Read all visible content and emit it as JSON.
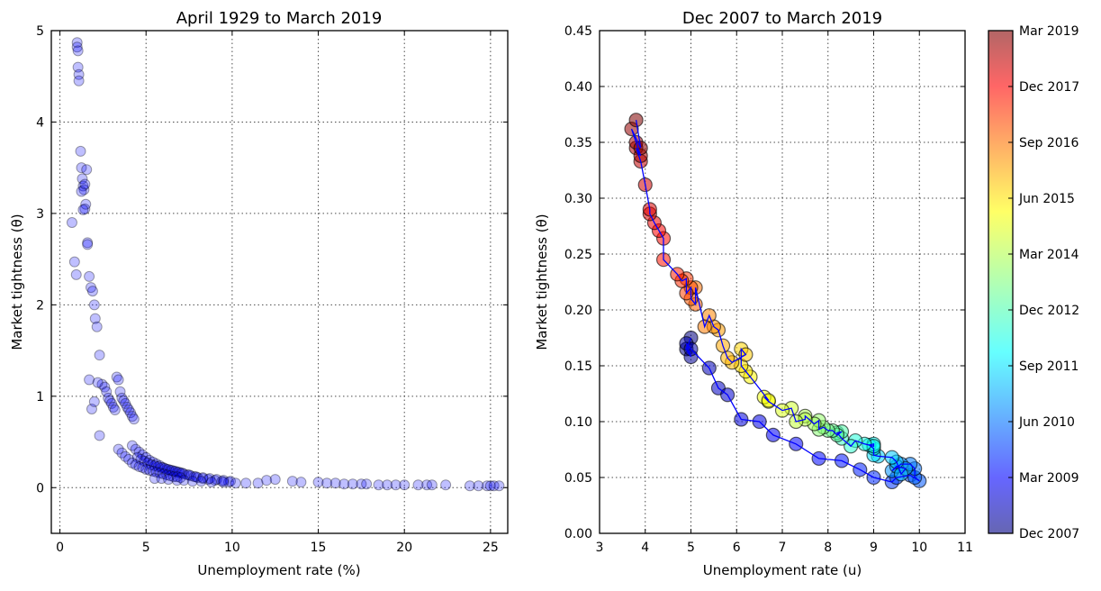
{
  "chart_data": [
    {
      "type": "scatter",
      "title": "April 1929 to March 2019",
      "xlabel": "Unemployment rate (%)",
      "ylabel": "Market tightness (θ)",
      "xlim": [
        -0.5,
        26
      ],
      "ylim": [
        -0.5,
        5
      ],
      "xticks": [
        0,
        5,
        10,
        15,
        20,
        25
      ],
      "yticks": [
        0,
        1,
        2,
        3,
        4,
        5
      ],
      "grid": true,
      "marker_color": "#0000ff",
      "marker_alpha": 0.25,
      "series": [
        {
          "x": [
            1.0,
            1.0,
            1.05,
            1.05,
            1.1,
            1.1,
            1.2,
            1.25,
            1.3,
            1.35,
            1.4,
            1.45,
            1.5,
            1.55,
            1.6,
            1.6,
            0.7,
            0.85,
            0.95,
            1.25,
            1.35,
            1.45,
            1.7,
            1.8,
            1.9,
            2.0,
            2.05,
            2.15,
            1.7,
            1.85,
            2.0,
            2.3,
            2.45,
            2.6,
            2.7,
            2.8,
            2.9,
            3.0,
            3.1,
            3.2,
            3.3,
            3.4,
            2.2,
            2.3,
            3.5,
            3.6,
            3.7,
            3.8,
            3.9,
            4.0,
            4.1,
            4.2,
            4.3,
            3.4,
            3.6,
            3.8,
            4.0,
            4.2,
            4.4,
            4.6,
            4.8,
            5.0,
            5.2,
            5.4,
            5.6,
            5.8,
            6.0,
            6.2,
            6.4,
            6.6,
            6.8,
            7.0,
            7.2,
            7.4,
            7.6,
            7.8,
            8.0,
            8.3,
            8.6,
            9.0,
            9.4,
            9.8,
            4.5,
            4.7,
            4.9,
            5.1,
            5.3,
            5.5,
            5.7,
            5.9,
            6.1,
            6.3,
            6.5,
            6.7,
            6.9,
            7.1,
            7.5,
            7.9,
            8.3,
            8.7,
            9.1,
            9.5,
            9.9,
            4.2,
            4.4,
            4.6,
            4.8,
            5.0,
            5.2,
            5.4,
            5.6,
            5.8,
            6.0,
            6.2,
            6.4,
            6.6,
            6.8,
            7.0,
            5.5,
            5.9,
            6.3,
            6.8,
            7.2,
            7.7,
            8.2,
            8.8,
            9.5,
            10.2,
            10.8,
            11.5,
            12.0,
            12.5,
            13.5,
            14.0,
            15.0,
            15.5,
            16.0,
            16.5,
            17.0,
            17.5,
            17.8,
            18.5,
            19.0,
            19.5,
            20.0,
            20.8,
            21.3,
            21.6,
            22.4,
            23.8,
            24.3,
            24.8,
            25.0,
            25.2,
            25.5
          ],
          "y": [
            4.87,
            4.82,
            4.78,
            4.6,
            4.52,
            4.45,
            3.68,
            3.5,
            3.38,
            3.3,
            3.26,
            3.05,
            3.1,
            3.48,
            2.68,
            2.66,
            2.9,
            2.47,
            2.33,
            3.24,
            3.04,
            3.32,
            2.31,
            2.19,
            2.15,
            2.0,
            1.85,
            1.76,
            1.18,
            0.86,
            0.94,
            1.45,
            1.13,
            1.1,
            1.05,
            0.98,
            0.95,
            0.92,
            0.88,
            0.85,
            1.21,
            1.18,
            1.15,
            0.57,
            1.05,
            0.98,
            0.95,
            0.92,
            0.88,
            0.85,
            0.82,
            0.78,
            0.75,
            0.42,
            0.38,
            0.34,
            0.31,
            0.46,
            0.42,
            0.39,
            0.36,
            0.33,
            0.3,
            0.28,
            0.26,
            0.24,
            0.22,
            0.2,
            0.19,
            0.18,
            0.17,
            0.16,
            0.15,
            0.14,
            0.13,
            0.12,
            0.11,
            0.1,
            0.09,
            0.08,
            0.07,
            0.06,
            0.33,
            0.31,
            0.29,
            0.27,
            0.25,
            0.24,
            0.23,
            0.22,
            0.21,
            0.2,
            0.19,
            0.18,
            0.17,
            0.16,
            0.14,
            0.12,
            0.11,
            0.1,
            0.09,
            0.08,
            0.07,
            0.27,
            0.25,
            0.23,
            0.22,
            0.2,
            0.19,
            0.18,
            0.17,
            0.16,
            0.15,
            0.14,
            0.13,
            0.12,
            0.12,
            0.11,
            0.1,
            0.1,
            0.09,
            0.08,
            0.08,
            0.07,
            0.07,
            0.06,
            0.06,
            0.05,
            0.05,
            0.05,
            0.08,
            0.09,
            0.07,
            0.06,
            0.06,
            0.05,
            0.05,
            0.04,
            0.04,
            0.04,
            0.04,
            0.03,
            0.03,
            0.03,
            0.03,
            0.03,
            0.03,
            0.03,
            0.03,
            0.02,
            0.02,
            0.02,
            0.02,
            0.02,
            0.02
          ]
        }
      ]
    },
    {
      "type": "line",
      "title": "Dec 2007 to March 2019",
      "xlabel": "Unemployment rate (u)",
      "ylabel": "Market tightness (θ)",
      "xlim": [
        3,
        11
      ],
      "ylim": [
        0.0,
        0.45
      ],
      "xticks": [
        3,
        4,
        5,
        6,
        7,
        8,
        9,
        10,
        11
      ],
      "yticks": [
        0.0,
        0.05,
        0.1,
        0.15,
        0.2,
        0.25,
        0.3,
        0.35,
        0.4,
        0.45
      ],
      "grid": true,
      "line_color": "#0000ff",
      "colormap": "jet",
      "colorbar": {
        "tick_labels": [
          "Dec 2007",
          "Mar 2009",
          "Jun 2010",
          "Sep 2011",
          "Dec 2012",
          "Mar 2014",
          "Jun 2015",
          "Sep 2016",
          "Dec 2017",
          "Mar 2019"
        ]
      },
      "series": [
        {
          "x": [
            5.0,
            4.9,
            5.0,
            4.9,
            5.0,
            5.4,
            5.6,
            5.8,
            6.1,
            6.5,
            6.8,
            7.3,
            7.8,
            8.3,
            8.7,
            9.0,
            9.4,
            9.5,
            9.8,
            10.0,
            9.9,
            9.9,
            9.8,
            9.6,
            9.4,
            9.5,
            9.7,
            9.6,
            9.5,
            9.4,
            9.1,
            9.0,
            9.0,
            8.9,
            9.0,
            9.0,
            8.8,
            8.6,
            8.5,
            8.3,
            8.2,
            8.3,
            8.2,
            8.1,
            8.0,
            7.9,
            7.8,
            7.8,
            7.7,
            7.5,
            7.5,
            7.3,
            7.2,
            7.0,
            6.7,
            6.6,
            6.7,
            6.3,
            6.2,
            6.1,
            6.1,
            6.2,
            5.9,
            5.8,
            5.7,
            5.6,
            5.5,
            5.4,
            5.3,
            5.1,
            5.1,
            5.0,
            5.0,
            4.9,
            4.9,
            4.8,
            4.7,
            4.4,
            4.4,
            4.3,
            4.2,
            4.1,
            4.1,
            4.0,
            3.9,
            3.8,
            3.9,
            3.8,
            3.7,
            3.9,
            3.8
          ],
          "y": [
            0.175,
            0.165,
            0.158,
            0.17,
            0.165,
            0.148,
            0.13,
            0.124,
            0.102,
            0.1,
            0.088,
            0.08,
            0.067,
            0.065,
            0.057,
            0.05,
            0.046,
            0.05,
            0.052,
            0.047,
            0.05,
            0.058,
            0.062,
            0.062,
            0.056,
            0.06,
            0.058,
            0.053,
            0.064,
            0.068,
            0.069,
            0.07,
            0.076,
            0.079,
            0.08,
            0.078,
            0.08,
            0.083,
            0.078,
            0.085,
            0.09,
            0.091,
            0.088,
            0.092,
            0.092,
            0.095,
            0.093,
            0.101,
            0.098,
            0.105,
            0.102,
            0.1,
            0.112,
            0.11,
            0.118,
            0.122,
            0.119,
            0.14,
            0.145,
            0.15,
            0.165,
            0.16,
            0.153,
            0.157,
            0.168,
            0.182,
            0.185,
            0.195,
            0.185,
            0.22,
            0.205,
            0.21,
            0.22,
            0.215,
            0.228,
            0.226,
            0.232,
            0.245,
            0.264,
            0.271,
            0.278,
            0.286,
            0.29,
            0.312,
            0.333,
            0.345,
            0.338,
            0.35,
            0.362,
            0.345,
            0.37
          ]
        }
      ]
    }
  ]
}
